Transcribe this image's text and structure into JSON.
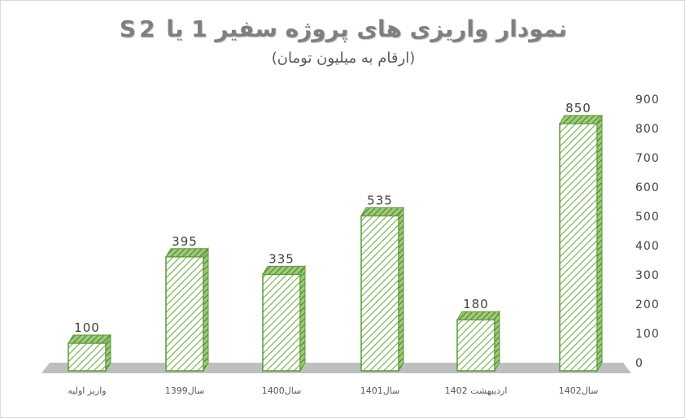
{
  "chart_data": {
    "type": "bar",
    "title": "نمودار واریزی های پروژه سفیر 1 یا S2",
    "subtitle": "(ارقام به میلیون تومان)",
    "categories": [
      "واریز اولیه",
      "سال1399",
      "سال1400",
      "سال1401",
      "اردیبهشت 1402",
      "سال1402"
    ],
    "values": [
      100,
      395,
      335,
      535,
      180,
      850
    ],
    "y_ticks": [
      "0",
      "100",
      "200",
      "300",
      "400",
      "500",
      "600",
      "700",
      "800",
      "900"
    ],
    "ylim": [
      0,
      900
    ],
    "y_axis_position": "right",
    "grid": false,
    "legend": "none",
    "style": "3d-column, diagonal hatch",
    "colors": {
      "bar_fill": "#ffffff",
      "bar_hatch": "#70ad47",
      "bar_outline": "#5a9a35",
      "bar_side": "#4b7c2b",
      "floor": "#bfbfbf",
      "text": "#404040"
    }
  }
}
